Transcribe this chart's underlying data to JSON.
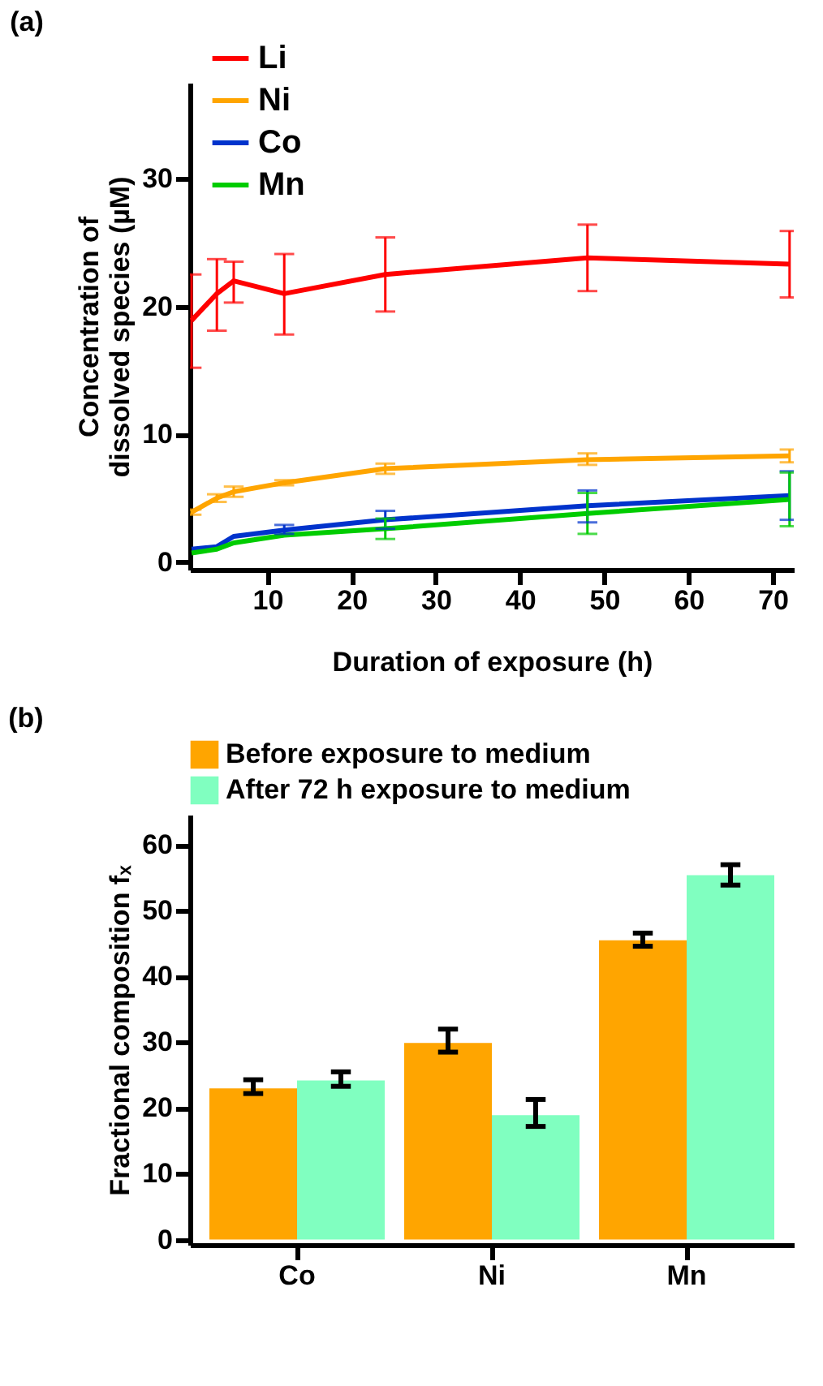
{
  "chart_data": [
    {
      "type": "line",
      "title": "(a)",
      "xlabel": "Duration of exposure (h)",
      "ylabel": "Concentration of\ndissolved species (µM)",
      "x": [
        1,
        4,
        6,
        12,
        24,
        48,
        72
      ],
      "xlim": [
        0.8,
        72.5
      ],
      "xticks": [
        10,
        20,
        30,
        40,
        50,
        60,
        70
      ],
      "ylim": [
        -0.6,
        37.5
      ],
      "yticks": [
        0,
        10,
        20,
        30
      ],
      "grid": false,
      "legend": "top left",
      "series": [
        {
          "name": "Li",
          "color": "#ff0000",
          "values": [
            18.9,
            21,
            22,
            21,
            22.5,
            23.8,
            23.3
          ],
          "errors": [
            [
              15.2,
              22.5
            ],
            [
              18.1,
              23.7
            ],
            [
              20.3,
              23.5
            ],
            [
              17.8,
              24.1
            ],
            [
              19.6,
              25.4
            ],
            [
              21.2,
              26.4
            ],
            [
              20.7,
              25.9
            ]
          ]
        },
        {
          "name": "Ni",
          "color": "#ffa500",
          "values": [
            3.9,
            5.0,
            5.5,
            6.2,
            7.3,
            8.0,
            8.3
          ],
          "errors": [
            [
              3.7,
              4.1
            ],
            [
              4.7,
              5.3
            ],
            [
              5.1,
              5.9
            ],
            [
              6.0,
              6.4
            ],
            [
              6.9,
              7.7
            ],
            [
              7.6,
              8.5
            ],
            [
              7.8,
              8.8
            ]
          ]
        },
        {
          "name": "Co",
          "color": "#0033cc",
          "values": [
            1.0,
            1.2,
            2.0,
            2.5,
            3.3,
            4.4,
            5.2
          ],
          "errors": [
            null,
            null,
            null,
            [
              2.2,
              2.9
            ],
            [
              2.6,
              4.0
            ],
            [
              3.1,
              5.6
            ],
            [
              3.3,
              7.1
            ]
          ]
        },
        {
          "name": "Mn",
          "color": "#00cc00",
          "values": [
            0.7,
            1.0,
            1.5,
            2.1,
            2.6,
            3.8,
            4.9
          ],
          "errors": [
            null,
            null,
            null,
            null,
            [
              1.8,
              3.4
            ],
            [
              2.2,
              5.4
            ],
            [
              2.8,
              7.0
            ]
          ]
        }
      ]
    },
    {
      "type": "bar",
      "title": "(b)",
      "ylabel": "Fractional composition fₓ",
      "categories": [
        "Co",
        "Ni",
        "Mn"
      ],
      "ylim": [
        -0.8,
        64.6
      ],
      "yticks": [
        0,
        10,
        20,
        30,
        40,
        50,
        60
      ],
      "grid": false,
      "legend": "top",
      "series": [
        {
          "name": "Before exposure to medium",
          "color": "#ffa500",
          "values": [
            23.0,
            29.9,
            45.5
          ],
          "errors": [
            [
              22.2,
              24.3
            ],
            [
              28.5,
              32.0
            ],
            [
              44.6,
              46.6
            ]
          ]
        },
        {
          "name": "After 72 h exposure to medium",
          "color": "#80ffc0",
          "values": [
            24.2,
            18.9,
            55.4
          ],
          "errors": [
            [
              23.3,
              25.5
            ],
            [
              17.2,
              21.3
            ],
            [
              53.9,
              57.0
            ]
          ]
        }
      ]
    }
  ]
}
